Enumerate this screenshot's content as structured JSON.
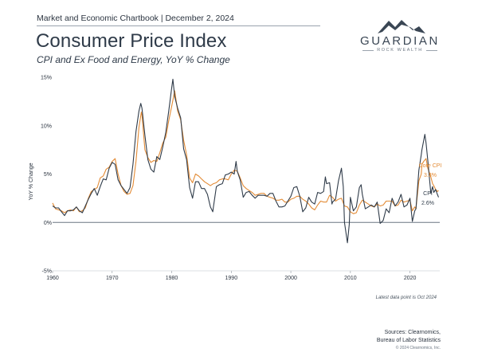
{
  "header": {
    "top_line": "Market and Economic Chartbook | December 2, 2024",
    "title": "Consumer Price Index",
    "subtitle": "CPI and Ex Food and Energy, YoY % Change"
  },
  "logo": {
    "name": "GUARDIAN",
    "tagline": "ROCK WEALTH",
    "icon": "mountain-icon"
  },
  "footer": {
    "note": "Latest data point is Oct 2024",
    "source_line1": "Sources: Clearnomics,",
    "source_line2": "Bureau of Labor Statistics",
    "copyright": "© 2024 Clearnomics, Inc."
  },
  "colors": {
    "cpi": "#2f3b49",
    "core": "#e38b35",
    "zero_line": "#6b7682"
  },
  "chart_data": {
    "type": "line",
    "title": "Consumer Price Index",
    "subtitle": "CPI and Ex Food and Energy, YoY % Change",
    "xlabel": "",
    "ylabel": "YoY % Change",
    "xlim": [
      1960,
      2025
    ],
    "ylim": [
      -5,
      15
    ],
    "x_ticks": [
      "1960",
      "1970",
      "1980",
      "1990",
      "2000",
      "2010",
      "2020"
    ],
    "y_ticks": [
      "15%",
      "10%",
      "5%",
      "0%",
      "-5%"
    ],
    "y_tick_values": [
      15,
      10,
      5,
      0,
      -5
    ],
    "x_tick_values": [
      1960,
      1970,
      1980,
      1990,
      2000,
      2010,
      2020
    ],
    "grid": false,
    "series": [
      {
        "name": "CPI",
        "end_label": "2.6%",
        "points": [
          [
            1960,
            1.7
          ],
          [
            1960.5,
            1.5
          ],
          [
            1961,
            1.5
          ],
          [
            1961.5,
            1.1
          ],
          [
            1962,
            0.7
          ],
          [
            1962.5,
            1.2
          ],
          [
            1963,
            1.2
          ],
          [
            1963.5,
            1.3
          ],
          [
            1964,
            1.6
          ],
          [
            1964.5,
            1.2
          ],
          [
            1965,
            1.0
          ],
          [
            1965.5,
            1.7
          ],
          [
            1966,
            2.4
          ],
          [
            1966.5,
            3.0
          ],
          [
            1967,
            3.5
          ],
          [
            1967.5,
            2.8
          ],
          [
            1968,
            3.7
          ],
          [
            1968.5,
            4.5
          ],
          [
            1969,
            4.4
          ],
          [
            1969.5,
            5.6
          ],
          [
            1970,
            6.2
          ],
          [
            1970.5,
            6.0
          ],
          [
            1971,
            4.4
          ],
          [
            1971.5,
            3.8
          ],
          [
            1972,
            3.4
          ],
          [
            1972.5,
            3.0
          ],
          [
            1973,
            3.6
          ],
          [
            1973.5,
            6.0
          ],
          [
            1974,
            9.4
          ],
          [
            1974.5,
            11.5
          ],
          [
            1974.8,
            12.3
          ],
          [
            1975,
            11.8
          ],
          [
            1975.5,
            9.0
          ],
          [
            1976,
            6.5
          ],
          [
            1976.5,
            5.5
          ],
          [
            1977,
            5.2
          ],
          [
            1977.5,
            6.8
          ],
          [
            1978,
            6.5
          ],
          [
            1978.5,
            7.8
          ],
          [
            1979,
            9.3
          ],
          [
            1979.5,
            11.5
          ],
          [
            1980,
            13.9
          ],
          [
            1980.2,
            14.8
          ],
          [
            1980.5,
            13.0
          ],
          [
            1981,
            11.8
          ],
          [
            1981.5,
            10.8
          ],
          [
            1982,
            7.6
          ],
          [
            1982.5,
            6.5
          ],
          [
            1983,
            3.6
          ],
          [
            1983.5,
            2.5
          ],
          [
            1984,
            4.2
          ],
          [
            1984.5,
            4.2
          ],
          [
            1985,
            3.5
          ],
          [
            1985.5,
            3.5
          ],
          [
            1986,
            2.9
          ],
          [
            1986.5,
            1.6
          ],
          [
            1986.9,
            1.1
          ],
          [
            1987,
            1.6
          ],
          [
            1987.5,
            3.7
          ],
          [
            1988,
            3.9
          ],
          [
            1988.5,
            4.0
          ],
          [
            1989,
            4.9
          ],
          [
            1989.5,
            5.0
          ],
          [
            1990,
            5.2
          ],
          [
            1990.5,
            5.0
          ],
          [
            1990.8,
            6.3
          ],
          [
            1991,
            5.3
          ],
          [
            1991.5,
            4.4
          ],
          [
            1992,
            2.6
          ],
          [
            1992.5,
            3.1
          ],
          [
            1993,
            3.2
          ],
          [
            1993.5,
            2.8
          ],
          [
            1994,
            2.5
          ],
          [
            1994.5,
            2.8
          ],
          [
            1995,
            2.8
          ],
          [
            1995.5,
            2.8
          ],
          [
            1996,
            2.7
          ],
          [
            1996.5,
            3.0
          ],
          [
            1997,
            3.0
          ],
          [
            1997.5,
            2.2
          ],
          [
            1998,
            1.6
          ],
          [
            1998.5,
            1.6
          ],
          [
            1999,
            1.7
          ],
          [
            1999.5,
            2.2
          ],
          [
            2000,
            2.7
          ],
          [
            2000.5,
            3.6
          ],
          [
            2001,
            3.7
          ],
          [
            2001.5,
            2.7
          ],
          [
            2002,
            1.1
          ],
          [
            2002.5,
            1.5
          ],
          [
            2003,
            2.6
          ],
          [
            2003.5,
            2.1
          ],
          [
            2004,
            1.9
          ],
          [
            2004.5,
            3.1
          ],
          [
            2005,
            3.0
          ],
          [
            2005.5,
            3.2
          ],
          [
            2005.8,
            4.7
          ],
          [
            2006,
            4.0
          ],
          [
            2006.5,
            4.1
          ],
          [
            2006.9,
            1.9
          ],
          [
            2007,
            2.1
          ],
          [
            2007.5,
            2.4
          ],
          [
            2008,
            4.3
          ],
          [
            2008.5,
            5.6
          ],
          [
            2008.8,
            3.7
          ],
          [
            2009,
            0.0
          ],
          [
            2009.5,
            -2.1
          ],
          [
            2009.8,
            -0.2
          ],
          [
            2010,
            2.6
          ],
          [
            2010.5,
            1.2
          ],
          [
            2011,
            1.6
          ],
          [
            2011.5,
            3.6
          ],
          [
            2011.8,
            3.9
          ],
          [
            2012,
            2.9
          ],
          [
            2012.5,
            1.4
          ],
          [
            2013,
            1.6
          ],
          [
            2013.5,
            1.8
          ],
          [
            2014,
            1.6
          ],
          [
            2014.5,
            2.1
          ],
          [
            2015,
            -0.1
          ],
          [
            2015.5,
            0.2
          ],
          [
            2016,
            1.4
          ],
          [
            2016.5,
            1.0
          ],
          [
            2017,
            2.5
          ],
          [
            2017.5,
            1.7
          ],
          [
            2018,
            2.1
          ],
          [
            2018.5,
            2.9
          ],
          [
            2019,
            1.6
          ],
          [
            2019.5,
            1.8
          ],
          [
            2020,
            2.5
          ],
          [
            2020.4,
            0.1
          ],
          [
            2020.8,
            1.2
          ],
          [
            2021,
            1.4
          ],
          [
            2021.5,
            5.4
          ],
          [
            2021.9,
            7.0
          ],
          [
            2022,
            7.5
          ],
          [
            2022.5,
            9.1
          ],
          [
            2022.7,
            8.2
          ],
          [
            2023,
            6.4
          ],
          [
            2023.5,
            3.0
          ],
          [
            2023.8,
            3.7
          ],
          [
            2024,
            3.1
          ],
          [
            2024.3,
            3.4
          ],
          [
            2024.6,
            2.9
          ],
          [
            2024.8,
            2.6
          ]
        ]
      },
      {
        "name": "Core CPI",
        "end_label": "3.3%",
        "points": [
          [
            1960,
            2.0
          ],
          [
            1960.5,
            1.4
          ],
          [
            1961,
            1.3
          ],
          [
            1961.5,
            1.2
          ],
          [
            1962,
            1.0
          ],
          [
            1962.5,
            1.2
          ],
          [
            1963,
            1.3
          ],
          [
            1963.5,
            1.2
          ],
          [
            1964,
            1.6
          ],
          [
            1964.5,
            1.1
          ],
          [
            1965,
            1.2
          ],
          [
            1965.5,
            1.5
          ],
          [
            1966,
            2.5
          ],
          [
            1966.5,
            3.2
          ],
          [
            1967,
            3.4
          ],
          [
            1967.5,
            3.6
          ],
          [
            1968,
            4.6
          ],
          [
            1968.5,
            4.8
          ],
          [
            1969,
            5.5
          ],
          [
            1969.5,
            5.7
          ],
          [
            1970,
            6.3
          ],
          [
            1970.5,
            6.6
          ],
          [
            1971,
            5.0
          ],
          [
            1971.5,
            3.8
          ],
          [
            1972,
            3.2
          ],
          [
            1972.5,
            2.9
          ],
          [
            1973,
            3.0
          ],
          [
            1973.5,
            3.8
          ],
          [
            1974,
            6.3
          ],
          [
            1974.5,
            9.8
          ],
          [
            1974.9,
            11.4
          ],
          [
            1975,
            11.1
          ],
          [
            1975.5,
            7.5
          ],
          [
            1976,
            6.7
          ],
          [
            1976.5,
            6.2
          ],
          [
            1977,
            6.4
          ],
          [
            1977.5,
            6.3
          ],
          [
            1978,
            7.2
          ],
          [
            1978.5,
            8.2
          ],
          [
            1979,
            8.8
          ],
          [
            1979.5,
            10.5
          ],
          [
            1980,
            12.0
          ],
          [
            1980.5,
            13.6
          ],
          [
            1981,
            11.5
          ],
          [
            1981.5,
            10.6
          ],
          [
            1982,
            8.5
          ],
          [
            1982.5,
            7.0
          ],
          [
            1983,
            4.6
          ],
          [
            1983.5,
            4.1
          ],
          [
            1984,
            5.0
          ],
          [
            1984.5,
            4.8
          ],
          [
            1985,
            4.5
          ],
          [
            1985.5,
            4.2
          ],
          [
            1986,
            4.0
          ],
          [
            1986.5,
            3.8
          ],
          [
            1987,
            4.0
          ],
          [
            1987.5,
            4.1
          ],
          [
            1988,
            4.4
          ],
          [
            1988.5,
            4.5
          ],
          [
            1989,
            4.5
          ],
          [
            1989.5,
            4.4
          ],
          [
            1990,
            5.0
          ],
          [
            1990.5,
            5.4
          ],
          [
            1991,
            5.3
          ],
          [
            1991.5,
            4.6
          ],
          [
            1992,
            3.8
          ],
          [
            1992.5,
            3.5
          ],
          [
            1993,
            3.3
          ],
          [
            1993.5,
            3.1
          ],
          [
            1994,
            2.8
          ],
          [
            1994.5,
            2.9
          ],
          [
            1995,
            3.0
          ],
          [
            1995.5,
            3.0
          ],
          [
            1996,
            2.7
          ],
          [
            1996.5,
            2.6
          ],
          [
            1997,
            2.5
          ],
          [
            1997.5,
            2.3
          ],
          [
            1998,
            2.3
          ],
          [
            1998.5,
            2.4
          ],
          [
            1999,
            2.1
          ],
          [
            1999.5,
            2.1
          ],
          [
            2000,
            2.4
          ],
          [
            2000.5,
            2.5
          ],
          [
            2001,
            2.7
          ],
          [
            2001.5,
            2.7
          ],
          [
            2002,
            2.4
          ],
          [
            2002.5,
            2.2
          ],
          [
            2003,
            1.9
          ],
          [
            2003.5,
            1.5
          ],
          [
            2004,
            1.3
          ],
          [
            2004.5,
            1.8
          ],
          [
            2005,
            2.2
          ],
          [
            2005.5,
            2.1
          ],
          [
            2006,
            2.1
          ],
          [
            2006.5,
            2.8
          ],
          [
            2007,
            2.6
          ],
          [
            2007.5,
            2.2
          ],
          [
            2008,
            2.4
          ],
          [
            2008.5,
            2.5
          ],
          [
            2009,
            1.7
          ],
          [
            2009.5,
            1.6
          ],
          [
            2010,
            1.1
          ],
          [
            2010.5,
            0.9
          ],
          [
            2011,
            1.0
          ],
          [
            2011.5,
            1.8
          ],
          [
            2012,
            2.3
          ],
          [
            2012.5,
            2.1
          ],
          [
            2013,
            1.9
          ],
          [
            2013.5,
            1.7
          ],
          [
            2014,
            1.6
          ],
          [
            2014.5,
            1.9
          ],
          [
            2015,
            1.7
          ],
          [
            2015.5,
            1.8
          ],
          [
            2016,
            2.2
          ],
          [
            2016.5,
            2.2
          ],
          [
            2017,
            2.2
          ],
          [
            2017.5,
            1.7
          ],
          [
            2018,
            1.8
          ],
          [
            2018.5,
            2.3
          ],
          [
            2019,
            2.1
          ],
          [
            2019.5,
            2.2
          ],
          [
            2020,
            2.3
          ],
          [
            2020.4,
            1.2
          ],
          [
            2020.8,
            1.6
          ],
          [
            2021,
            1.4
          ],
          [
            2021.5,
            4.3
          ],
          [
            2021.9,
            5.0
          ],
          [
            2022,
            6.0
          ],
          [
            2022.3,
            6.3
          ],
          [
            2022.7,
            6.6
          ],
          [
            2023,
            5.6
          ],
          [
            2023.5,
            4.7
          ],
          [
            2023.8,
            4.0
          ],
          [
            2024,
            3.8
          ],
          [
            2024.3,
            3.4
          ],
          [
            2024.6,
            3.2
          ],
          [
            2024.8,
            3.3
          ]
        ]
      }
    ]
  }
}
